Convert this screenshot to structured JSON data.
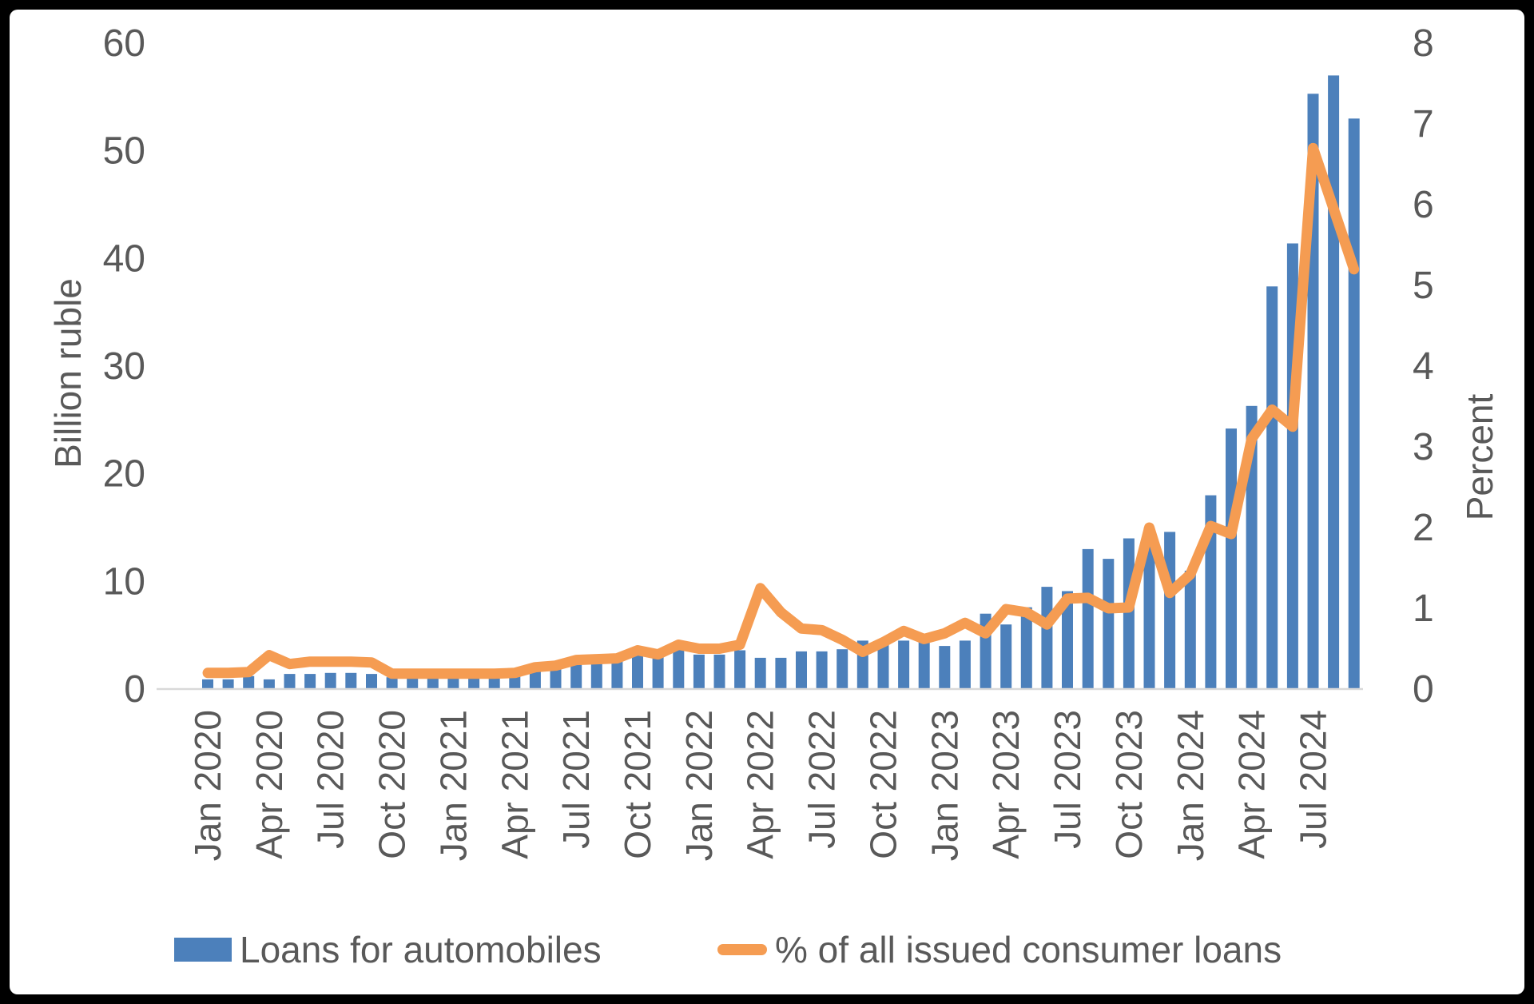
{
  "colors": {
    "bar": "#4C80BB",
    "line": "#F59C52",
    "axis_text": "#595959",
    "baseline": "#D9D9D9",
    "frame": "#000000",
    "background": "#FFFFFF"
  },
  "legend": {
    "items": [
      {
        "label": "Loans for automobiles",
        "swatch": "bar-swatch"
      },
      {
        "label": "% of all issued consumer loans",
        "swatch": "line-swatch"
      }
    ]
  },
  "chart_data": {
    "type": "bar",
    "subtype": "combo-bar-line-dual-axis",
    "title": "",
    "categories": [
      "Jan 2020",
      "Feb 2020",
      "Mar 2020",
      "Apr 2020",
      "May 2020",
      "Jun 2020",
      "Jul 2020",
      "Aug 2020",
      "Sep 2020",
      "Oct 2020",
      "Nov 2020",
      "Dec 2020",
      "Jan 2021",
      "Feb 2021",
      "Mar 2021",
      "Apr 2021",
      "May 2021",
      "Jun 2021",
      "Jul 2021",
      "Aug 2021",
      "Sep 2021",
      "Oct 2021",
      "Nov 2021",
      "Dec 2021",
      "Jan 2022",
      "Feb 2022",
      "Mar 2022",
      "Apr 2022",
      "May 2022",
      "Jun 2022",
      "Jul 2022",
      "Aug 2022",
      "Sep 2022",
      "Oct 2022",
      "Nov 2022",
      "Dec 2022",
      "Jan 2023",
      "Feb 2023",
      "Mar 2023",
      "Apr 2023",
      "May 2023",
      "Jun 2023",
      "Jul 2023",
      "Aug 2023",
      "Sep 2023",
      "Oct 2023",
      "Nov 2023",
      "Dec 2023",
      "Jan 2024",
      "Feb 2024",
      "Mar 2024",
      "Apr 2024",
      "May 2024",
      "Jun 2024",
      "Jul 2024",
      "Aug 2024",
      "Sep 2024"
    ],
    "x_label_every": 3,
    "series": [
      {
        "name": "Loans for automobiles",
        "type": "bar",
        "axis": "left",
        "values": [
          0.9,
          0.9,
          1.2,
          0.9,
          1.4,
          1.4,
          1.5,
          1.5,
          1.4,
          1.1,
          1.1,
          1.2,
          1.1,
          1.1,
          1.1,
          1.2,
          1.9,
          1.9,
          2.7,
          2.7,
          2.8,
          3.5,
          3.1,
          4.0,
          3.2,
          3.2,
          3.6,
          2.9,
          2.9,
          3.5,
          3.5,
          3.7,
          4.5,
          4.5,
          4.5,
          5.1,
          4.0,
          4.5,
          7.0,
          6.0,
          7.6,
          9.5,
          9.1,
          13.0,
          12.1,
          14.0,
          15.0,
          14.6,
          11.0,
          18.0,
          24.2,
          26.3,
          37.4,
          41.4,
          55.3,
          57.0,
          53.0
        ]
      },
      {
        "name": "% of all issued consumer loans",
        "type": "line",
        "axis": "right",
        "values": [
          0.2,
          0.2,
          0.21,
          0.42,
          0.31,
          0.34,
          0.34,
          0.34,
          0.33,
          0.19,
          0.19,
          0.19,
          0.19,
          0.19,
          0.19,
          0.2,
          0.27,
          0.29,
          0.36,
          0.37,
          0.38,
          0.48,
          0.43,
          0.55,
          0.5,
          0.5,
          0.55,
          1.25,
          0.95,
          0.75,
          0.73,
          0.61,
          0.46,
          0.58,
          0.72,
          0.62,
          0.69,
          0.82,
          0.69,
          0.99,
          0.95,
          0.8,
          1.12,
          1.13,
          1.0,
          1.01,
          2.0,
          1.19,
          1.42,
          2.02,
          1.92,
          3.1,
          3.46,
          3.25,
          6.7,
          5.95,
          5.2
        ]
      }
    ],
    "left_axis": {
      "title": "Billion ruble",
      "min": 0,
      "max": 60,
      "step": 10,
      "tick_labels": [
        "0",
        "10",
        "20",
        "30",
        "40",
        "50",
        "60"
      ]
    },
    "right_axis": {
      "title": "Percent",
      "min": 0,
      "max": 8,
      "step": 1,
      "tick_labels": [
        "0",
        "1",
        "2",
        "3",
        "4",
        "5",
        "6",
        "7",
        "8"
      ]
    },
    "grid": false,
    "legend_position": "bottom"
  }
}
